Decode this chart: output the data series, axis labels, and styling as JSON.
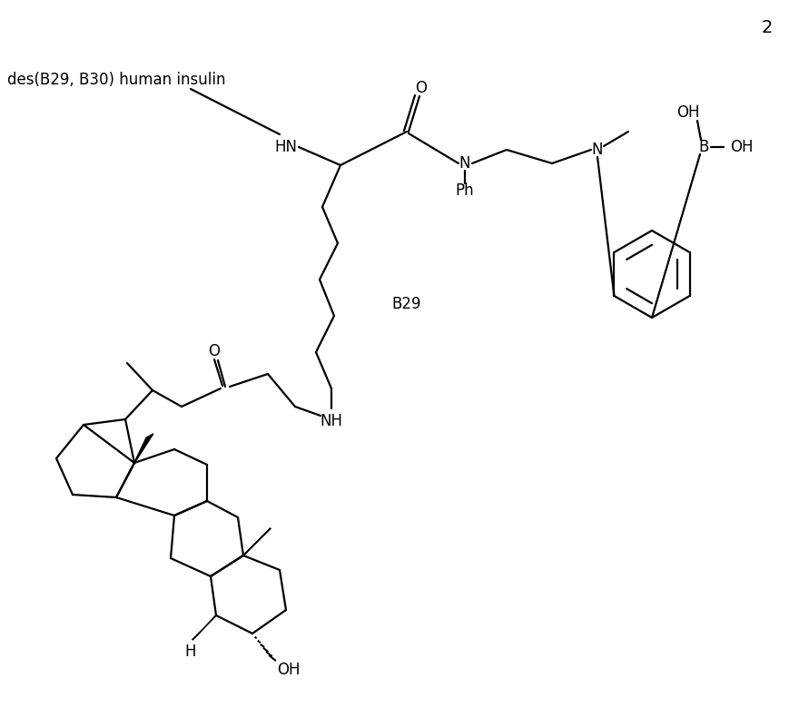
{
  "page_number": "2",
  "label_insulin": "des(B29, B30) human insulin",
  "label_b29": "B29",
  "background": "#ffffff",
  "line_color": "#000000",
  "lw": 1.6,
  "fs": 12
}
